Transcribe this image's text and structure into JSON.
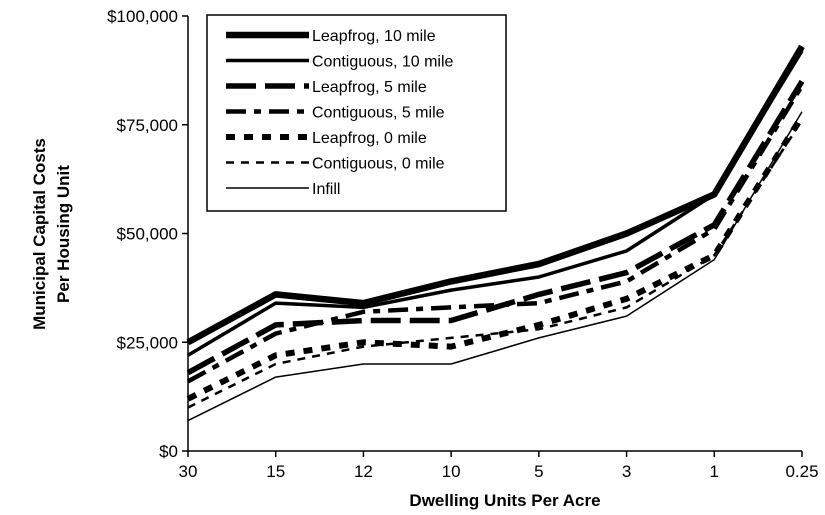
{
  "chart_data": {
    "type": "line",
    "title": "",
    "xlabel": "Dwelling Units Per Acre",
    "ylabel": "Municipal Capital Costs Per Housing Unit",
    "ylim": [
      0,
      100000
    ],
    "yticks": [
      "$0",
      "$25,000",
      "$50,000",
      "$75,000",
      "$100,000"
    ],
    "categories": [
      "30",
      "15",
      "12",
      "10",
      "5",
      "3",
      "1",
      "0.25"
    ],
    "grid": false,
    "legend_position": "top-left",
    "series": [
      {
        "name": "Leapfrog, 10 mile",
        "style": "thick-solid",
        "values": [
          25000,
          36000,
          34000,
          39000,
          43000,
          50000,
          59000,
          93000
        ]
      },
      {
        "name": "Contiguous, 10 mile",
        "style": "solid",
        "values": [
          22000,
          34000,
          33000,
          37000,
          40000,
          46000,
          59000,
          92000
        ]
      },
      {
        "name": "Leapfrog, 5 mile",
        "style": "long-dash",
        "values": [
          18000,
          29000,
          30000,
          30000,
          36000,
          41000,
          52000,
          85000
        ]
      },
      {
        "name": "Contiguous, 5 mile",
        "style": "dash-dot",
        "values": [
          16000,
          27000,
          32000,
          33000,
          34000,
          39000,
          51000,
          84000
        ]
      },
      {
        "name": "Leapfrog, 0 mile",
        "style": "square-dot",
        "values": [
          12000,
          22000,
          25000,
          24000,
          29000,
          35000,
          45000,
          77000
        ]
      },
      {
        "name": "Contiguous, 0 mile",
        "style": "short-dash",
        "values": [
          10000,
          20000,
          24000,
          26000,
          28000,
          33000,
          45000,
          76000
        ]
      },
      {
        "name": "Infill",
        "style": "thin-solid",
        "values": [
          7000,
          17000,
          20000,
          20000,
          26000,
          31000,
          44000,
          78000
        ]
      }
    ]
  }
}
